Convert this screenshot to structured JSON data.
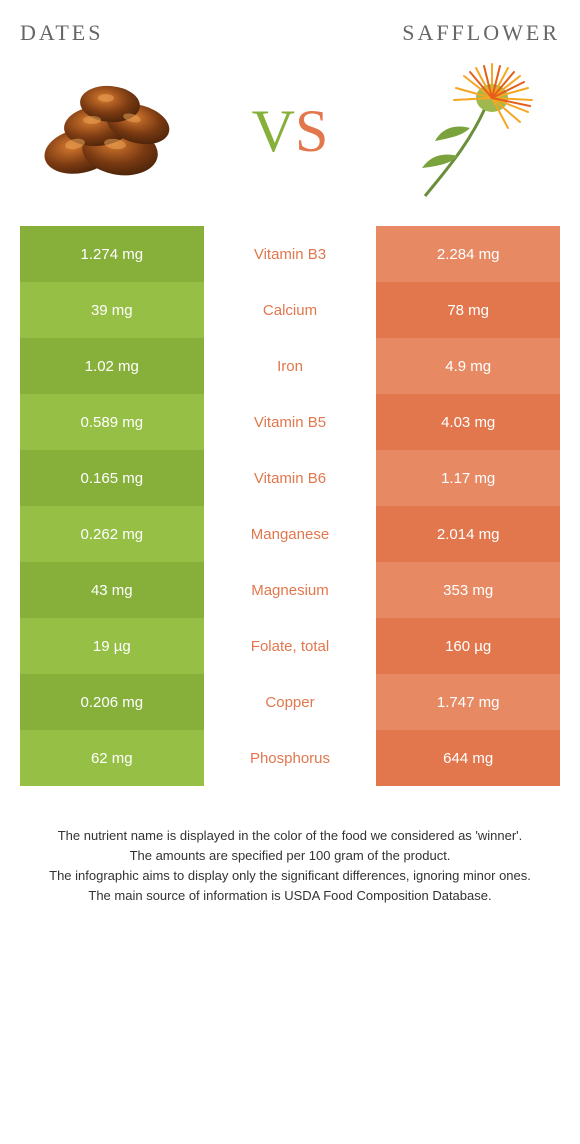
{
  "left_food": "Dates",
  "right_food": "Safflower",
  "vs_v_color": "#86b03a",
  "vs_s_color": "#e2774d",
  "colors": {
    "dates_row1": "#86b03a",
    "dates_row2": "#96c045",
    "saff_row1": "#e78a64",
    "saff_row2": "#e2774d"
  },
  "rows": [
    {
      "left": "1.274 mg",
      "name": "Vitamin B3",
      "right": "2.284 mg",
      "winner": "right"
    },
    {
      "left": "39 mg",
      "name": "Calcium",
      "right": "78 mg",
      "winner": "right"
    },
    {
      "left": "1.02 mg",
      "name": "Iron",
      "right": "4.9 mg",
      "winner": "right"
    },
    {
      "left": "0.589 mg",
      "name": "Vitamin B5",
      "right": "4.03 mg",
      "winner": "right"
    },
    {
      "left": "0.165 mg",
      "name": "Vitamin B6",
      "right": "1.17 mg",
      "winner": "right"
    },
    {
      "left": "0.262 mg",
      "name": "Manganese",
      "right": "2.014 mg",
      "winner": "right"
    },
    {
      "left": "43 mg",
      "name": "Magnesium",
      "right": "353 mg",
      "winner": "right"
    },
    {
      "left": "19 µg",
      "name": "Folate, total",
      "right": "160 µg",
      "winner": "right"
    },
    {
      "left": "0.206 mg",
      "name": "Copper",
      "right": "1.747 mg",
      "winner": "right"
    },
    {
      "left": "62 mg",
      "name": "Phosphorus",
      "right": "644 mg",
      "winner": "right"
    }
  ],
  "footer_lines": [
    "The nutrient name is displayed in the color of the food we considered as 'winner'.",
    "The amounts are specified per 100 gram of the product.",
    "The infographic aims to display only the significant differences, ignoring minor ones.",
    "The main source of information is USDA Food Composition Database."
  ]
}
